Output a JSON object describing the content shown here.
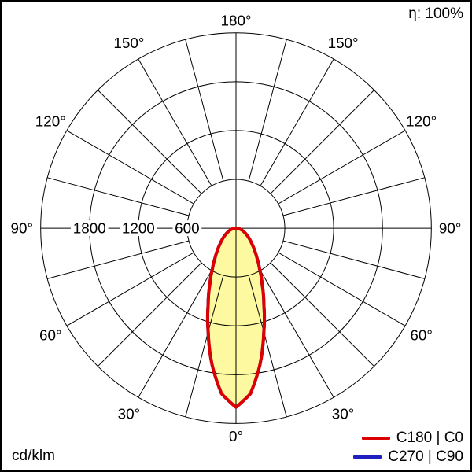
{
  "header": {
    "efficiency_label": "η: 100%"
  },
  "footer": {
    "unit_label": "cd/klm"
  },
  "legend": [
    {
      "label": "C180 | C0",
      "color": "#dd0000"
    },
    {
      "label": "C270 | C90",
      "color": "#2020c0"
    }
  ],
  "colors": {
    "grid": "#000000",
    "beam_fill": "#fcf9a0",
    "text": "#000000",
    "background": "#ffffff"
  },
  "chart_data": {
    "type": "polar",
    "title": "",
    "unit": "cd/klm",
    "zero_direction": "down",
    "angle_tick_step_deg": 15,
    "angle_label_step_deg": 30,
    "angle_labels": [
      "0°",
      "30°",
      "60°",
      "90°",
      "120°",
      "150°",
      "180°"
    ],
    "radial_axis": {
      "max": 2400,
      "step": 600,
      "tick_labels": [
        "1800",
        "1200",
        "600"
      ],
      "tick_values": [
        1800,
        1200,
        600
      ]
    },
    "series": [
      {
        "name": "C180 | C0",
        "color": "#dd0000",
        "fill": "#fcf9a0",
        "gamma_deg": [
          0,
          5,
          10,
          15,
          20,
          25,
          30,
          35,
          40,
          45,
          50,
          55,
          60,
          65,
          70,
          75,
          80,
          85,
          90
        ],
        "values": [
          2200,
          2040,
          1700,
          1320,
          1000,
          760,
          580,
          450,
          355,
          280,
          225,
          180,
          140,
          110,
          85,
          60,
          40,
          20,
          0
        ]
      },
      {
        "name": "C270 | C90",
        "color": "#2020c0",
        "fill": null,
        "gamma_deg": [
          0,
          5,
          10,
          15,
          20,
          25,
          30,
          35,
          40,
          45,
          50,
          55,
          60,
          65,
          70,
          75,
          80,
          85,
          90
        ],
        "values": [
          2200,
          2040,
          1700,
          1320,
          1000,
          760,
          580,
          450,
          355,
          280,
          225,
          180,
          140,
          110,
          85,
          60,
          40,
          20,
          0
        ]
      }
    ]
  }
}
